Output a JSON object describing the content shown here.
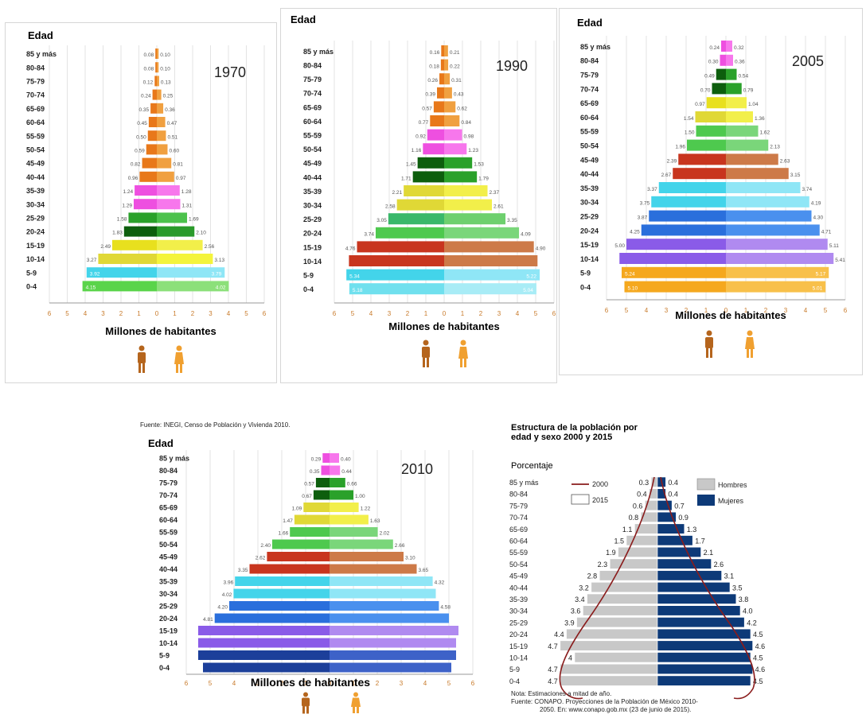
{
  "age_groups": [
    "85 y más",
    "80-84",
    "75-79",
    "70-74",
    "65-69",
    "60-64",
    "55-59",
    "50-54",
    "45-49",
    "40-44",
    "35-39",
    "30-34",
    "25-29",
    "20-24",
    "15-19",
    "10-14",
    "5-9",
    "0-4"
  ],
  "ticks": [
    "6",
    "5",
    "4",
    "3",
    "2",
    "1",
    "0",
    "1",
    "2",
    "3",
    "4",
    "5",
    "6"
  ],
  "common": {
    "edad": "Edad",
    "xlabel": "Millones de habitantes"
  },
  "source_2010": "Fuente: INEGI, Censo de Población y Vivienda 2010.",
  "chart_data": [
    {
      "type": "bar",
      "year": "1970",
      "male": [
        "0.08",
        "0.08",
        "0.12",
        "0.24",
        "0.35",
        "0.45",
        "0.50",
        "0.59",
        "0.82",
        "0.96",
        "1.24",
        "1.29",
        "1.58",
        "1.83",
        "2.49",
        "3.27",
        "3.92",
        "4.15"
      ],
      "female": [
        "0.10",
        "0.10",
        "0.13",
        "0.25",
        "0.36",
        "0.47",
        "0.51",
        "0.60",
        "0.81",
        "0.97",
        "1.28",
        "1.31",
        "1.69",
        "2.10",
        "2.56",
        "3.13",
        "3.79",
        "4.02"
      ],
      "colors": [
        "#e8781a",
        "#e8781a",
        "#e8781a",
        "#e8781a",
        "#e8781a",
        "#e8781a",
        "#e8781a",
        "#e8781a",
        "#e8781a",
        "#e8781a",
        "#ee4fe0",
        "#ee4fe0",
        "#2aa12a",
        "#0d5e0d",
        "#e8e01e",
        "#e0d836",
        "#43d4ea",
        "#5ad44a"
      ],
      "colors_f": [
        "#f0a040",
        "#f0a040",
        "#f0a040",
        "#f0a040",
        "#f0a040",
        "#f0a040",
        "#f0a040",
        "#f0a040",
        "#f0a040",
        "#f0a040",
        "#f777ec",
        "#f777ec",
        "#4cc24c",
        "#2a9a2a",
        "#f2ef4a",
        "#f4f43c",
        "#8fe6f6",
        "#8ce07a"
      ]
    },
    {
      "type": "bar",
      "year": "1990",
      "male": [
        "0.16",
        "0.18",
        "0.26",
        "0.39",
        "0.57",
        "0.77",
        "0.92",
        "1.16",
        "1.45",
        "1.71",
        "2.21",
        "2.58",
        "3.05",
        "3.74",
        "4.76",
        "",
        "5.34",
        "5.18"
      ],
      "female": [
        "0.21",
        "0.22",
        "0.31",
        "0.43",
        "0.62",
        "0.84",
        "0.98",
        "1.23",
        "1.53",
        "1.79",
        "2.37",
        "2.61",
        "3.35",
        "4.09",
        "4.90",
        "",
        "5.22",
        "5.04"
      ],
      "colors": [
        "#e8781a",
        "#e8781a",
        "#e8781a",
        "#e8781a",
        "#e8781a",
        "#e8781a",
        "#ee4fe0",
        "#ee4fe0",
        "#0d5e0d",
        "#0d5e0d",
        "#e0d836",
        "#e0d836",
        "#3ab86a",
        "#4ec94e",
        "#c8351e",
        "#c8351e",
        "#43d4ea",
        "#70e0ee"
      ],
      "colors_f": [
        "#f0a040",
        "#f0a040",
        "#f0a040",
        "#f0a040",
        "#f0a040",
        "#f0a040",
        "#f777ec",
        "#f777ec",
        "#2aa12a",
        "#2aa12a",
        "#f2ef4a",
        "#f2ef4a",
        "#6ed06e",
        "#7ad67a",
        "#cd7a48",
        "#cd7a48",
        "#8fe6f6",
        "#a8ecf6"
      ]
    },
    {
      "type": "bar",
      "year": "2005",
      "male": [
        "0.24",
        "0.30",
        "0.49",
        "0.70",
        "0.97",
        "1.54",
        "1.50",
        "1.96",
        "2.39",
        "2.67",
        "3.37",
        "3.75",
        "3.87",
        "4.25",
        "5.00",
        "",
        "5.24",
        "5.10"
      ],
      "female": [
        "0.32",
        "0.36",
        "0.54",
        "0.79",
        "1.04",
        "1.36",
        "1.62",
        "2.13",
        "2.63",
        "3.15",
        "3.74",
        "4.19",
        "4.30",
        "4.71",
        "5.11",
        "5.41",
        "5.17",
        "5.01"
      ],
      "colors": [
        "#ee4fe0",
        "#ee4fe0",
        "#0d5e0d",
        "#0d5e0d",
        "#e8e01e",
        "#e0d836",
        "#4ec94e",
        "#4ec94e",
        "#c8351e",
        "#c8351e",
        "#43d4ea",
        "#43d4ea",
        "#2a6fdc",
        "#2a6fdc",
        "#8a5be8",
        "#8a5be8",
        "#f5a81e",
        "#f5a81e"
      ],
      "colors_f": [
        "#f777ec",
        "#f777ec",
        "#2aa12a",
        "#2aa12a",
        "#f2ef4a",
        "#f2ef4a",
        "#7ad67a",
        "#7ad67a",
        "#cd7a48",
        "#cd7a48",
        "#8fe6f6",
        "#8fe6f6",
        "#4a90ee",
        "#4a90ee",
        "#b08af0",
        "#b08af0",
        "#f8c04a",
        "#f8c04a"
      ]
    },
    {
      "type": "bar",
      "year": "2010",
      "male": [
        "0.29",
        "0.35",
        "0.57",
        "0.67",
        "1.09",
        "1.47",
        "1.66",
        "2.40",
        "2.62",
        "3.35",
        "3.96",
        "4.02",
        "4.20",
        "4.81",
        "",
        "",
        "",
        ""
      ],
      "female": [
        "0.40",
        "0.44",
        "0.66",
        "1.00",
        "1.22",
        "1.63",
        "2.02",
        "2.66",
        "3.10",
        "3.65",
        "4.32",
        "",
        "4.58",
        "",
        "",
        "",
        "",
        ""
      ],
      "colors": [
        "#ee4fe0",
        "#ee4fe0",
        "#0d5e0d",
        "#0d5e0d",
        "#e0d836",
        "#e0d836",
        "#4ec94e",
        "#4ec94e",
        "#c8351e",
        "#c8351e",
        "#43d4ea",
        "#43d4ea",
        "#2a6fdc",
        "#2a6fdc",
        "#8a5be8",
        "#8a5be8",
        "#1c3f9a",
        "#1c3f9a"
      ],
      "colors_f": [
        "#f777ec",
        "#f777ec",
        "#2aa12a",
        "#2aa12a",
        "#f2ef4a",
        "#f2ef4a",
        "#7ad67a",
        "#7ad67a",
        "#cd7a48",
        "#cd7a48",
        "#8fe6f6",
        "#8fe6f6",
        "#4a90ee",
        "#4a90ee",
        "#b08af0",
        "#b08af0",
        "#3d62c8",
        "#3d62c8"
      ]
    },
    {
      "type": "bar",
      "title": "Estructura de la población por edad y sexo 2000 y 2015",
      "subtitle": "Porcentaje",
      "legend": {
        "line": "2000",
        "box": "2015",
        "men": "Hombres",
        "women": "Mujeres"
      },
      "male": [
        "0.3",
        "0.4",
        "0.6",
        "0.8",
        "1.1",
        "1.5",
        "1.9",
        "2.3",
        "2.8",
        "3.2",
        "3.4",
        "3.6",
        "3.9",
        "4.4",
        "4.7",
        "4",
        "4.7",
        "4.7"
      ],
      "female": [
        "0.4",
        "0.4",
        "0.7",
        "0.9",
        "1.3",
        "1.7",
        "2.1",
        "2.6",
        "3.1",
        "3.5",
        "3.8",
        "4.0",
        "4.2",
        "4.5",
        "4.6",
        "4.5",
        "4.6",
        "4.5"
      ],
      "note1": "Nota: Estimaciones a mitad de año.",
      "note2": "Fuente: CONAPO. Proyecciones de la Población de México 2010-",
      "note3": "2050. En: www.conapo.gob.mx (23 de junio de 2015).",
      "colors": [
        "#c8c8c8",
        "#0d3a78"
      ]
    }
  ]
}
